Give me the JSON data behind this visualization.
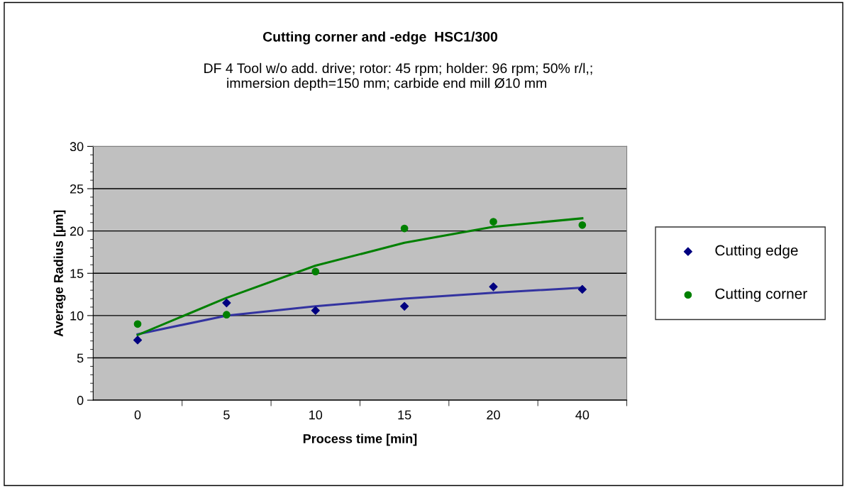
{
  "chart_data": {
    "type": "scatter",
    "title": "Cutting corner and -edge  HSC1/300",
    "subtitle": "DF 4 Tool w/o add. drive; rotor: 45 rpm; holder: 96 rpm; 50% r/l,;\n      immersion depth=150 mm; carbide end mill Ø10 mm",
    "xlabel": "Process time [min]",
    "ylabel": "Average Radius [µm]",
    "categories": [
      "0",
      "5",
      "10",
      "15",
      "20",
      "40"
    ],
    "series": [
      {
        "name": "Cutting edge",
        "color": "#000080",
        "marker": "diamond",
        "values": [
          7.1,
          11.5,
          10.6,
          11.1,
          13.4,
          13.1
        ]
      },
      {
        "name": "Cutting corner",
        "color": "#008000",
        "marker": "circle",
        "values": [
          9.0,
          10.1,
          15.2,
          20.3,
          21.1,
          20.7
        ]
      },
      {
        "type": "line",
        "color": "#3333a0",
        "marker": "none",
        "values": [
          7.8,
          10.0,
          11.1,
          12.0,
          12.7,
          13.3
        ]
      },
      {
        "type": "line",
        "color": "#008000",
        "marker": "none",
        "values": [
          7.7,
          12.1,
          15.9,
          18.6,
          20.5,
          21.5
        ]
      }
    ],
    "ylim": [
      0,
      30
    ],
    "yticks": [
      0,
      5,
      10,
      15,
      20,
      25,
      30
    ],
    "grid": "y",
    "legend": "right"
  }
}
